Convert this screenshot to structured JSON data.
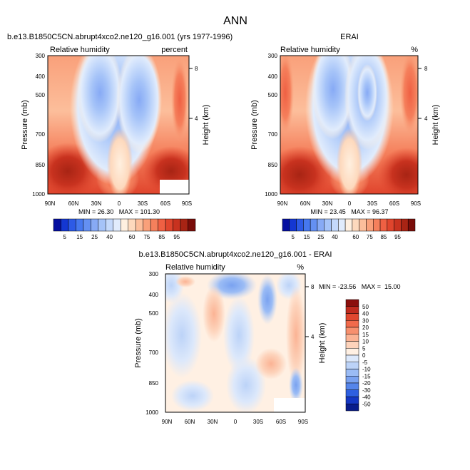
{
  "figure": {
    "main_title": "ANN"
  },
  "chart_data": [
    {
      "type": "heatmap",
      "title": "b.e13.B1850C5CN.abrupt4xco2.ne120_g16.001 (yrs 1977-1996)",
      "left_label": "Relative humidity",
      "units": "percent",
      "ylabel": "Pressure (mb)",
      "right_ylabel": "Height (km)",
      "x_ticks": [
        "90N",
        "60N",
        "30N",
        "0",
        "30S",
        "60S",
        "90S"
      ],
      "y_ticks": [
        "300",
        "400",
        "500",
        "700",
        "850",
        "1000"
      ],
      "right_ticks": [
        "8",
        "4"
      ],
      "stats": "MIN = 26.30   MAX = 101.30",
      "min": 26.3,
      "max": 101.3
    },
    {
      "type": "heatmap",
      "title": "ERAI",
      "left_label": "Relative humidity",
      "units": "%",
      "ylabel": "Pressure (mb)",
      "right_ylabel": "Height (km)",
      "x_ticks": [
        "90N",
        "60N",
        "30N",
        "0",
        "30S",
        "60S",
        "90S"
      ],
      "y_ticks": [
        "300",
        "400",
        "500",
        "700",
        "850",
        "1000"
      ],
      "right_ticks": [
        "8",
        "4"
      ],
      "stats": "MIN = 23.45   MAX = 96.37",
      "min": 23.45,
      "max": 96.37
    },
    {
      "type": "heatmap",
      "title": "b.e13.B1850C5CN.abrupt4xco2.ne120_g16.001 - ERAI",
      "left_label": "Relative humidity",
      "units": "%",
      "ylabel": "Pressure (mb)",
      "right_ylabel": "Height (km)",
      "x_ticks": [
        "90N",
        "60N",
        "30N",
        "0",
        "30S",
        "60S",
        "90S"
      ],
      "y_ticks": [
        "300",
        "400",
        "500",
        "700",
        "850",
        "1000"
      ],
      "right_ticks": [
        "8",
        "4"
      ],
      "stats": "MIN = -23.56   MAX =  15.00",
      "min": -23.56,
      "max": 15.0
    }
  ],
  "colorbars": {
    "absolute": {
      "labels": [
        "5",
        "15",
        "25",
        "40",
        "60",
        "75",
        "85",
        "95"
      ],
      "colors": [
        "#050fa0",
        "#1437d2",
        "#2d5ae6",
        "#4678ef",
        "#6490f2",
        "#87aaf5",
        "#a5c3f8",
        "#c4d9fb",
        "#e1ecfc",
        "#fff0e0",
        "#fdd9bd",
        "#fcbe9b",
        "#f9a07a",
        "#f5805c",
        "#ef6043",
        "#e0452d",
        "#c8321f",
        "#a82414",
        "#7a0d09"
      ]
    },
    "difference": {
      "labels": [
        "50",
        "40",
        "30",
        "20",
        "15",
        "10",
        "5",
        "0",
        "-5",
        "-10",
        "-15",
        "-20",
        "-30",
        "-40",
        "-50"
      ],
      "colors": [
        "#8b0f0c",
        "#c02b1e",
        "#e0472f",
        "#f16a4b",
        "#f7906e",
        "#fbb394",
        "#fdd3bb",
        "#fff0e3",
        "#dce8fb",
        "#bcd3f8",
        "#9bbcf5",
        "#7aa2f0",
        "#5585ea",
        "#2e5fe0",
        "#1437c4",
        "#081c8c"
      ]
    }
  }
}
